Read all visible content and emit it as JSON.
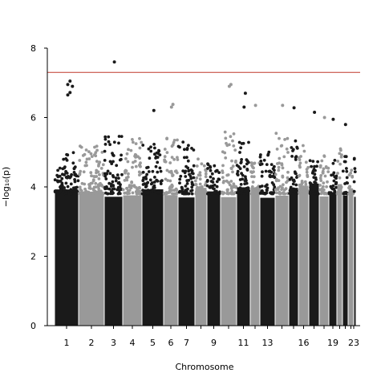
{
  "chart_data": {
    "type": "scatter",
    "subtype": "manhattan",
    "title": "",
    "xlabel": "Chromosome",
    "ylabel": "−log₁₀(p)",
    "ylim": [
      0,
      8
    ],
    "y_ticks": [
      0,
      2,
      4,
      6,
      8
    ],
    "x_tick_labels": [
      "1",
      "2",
      "3",
      "4",
      "5",
      "6",
      "7",
      "9",
      "11",
      "13",
      "16",
      "19",
      "23"
    ],
    "chromosome_count": 23,
    "significance_threshold": 7.3,
    "colors": {
      "odd_chromosomes": "#1a1a1a",
      "even_chromosomes": "#999999",
      "threshold_line": "#c0392b"
    },
    "grid": false,
    "legend": "none",
    "notable_points": [
      {
        "chromosome": 1,
        "values": [
          6.65,
          6.72,
          6.9,
          6.95,
          7.05
        ]
      },
      {
        "chromosome": 3,
        "values": [
          7.6
        ]
      },
      {
        "chromosome": 5,
        "values": [
          6.2
        ]
      },
      {
        "chromosome": 6,
        "values": [
          6.3,
          6.38
        ]
      },
      {
        "chromosome": 10,
        "values": [
          6.9,
          6.95
        ]
      },
      {
        "chromosome": 11,
        "values": [
          6.3,
          6.7
        ]
      },
      {
        "chromosome": 12,
        "values": [
          6.35
        ]
      },
      {
        "chromosome": 14,
        "values": [
          6.35
        ]
      },
      {
        "chromosome": 15,
        "values": [
          6.28
        ]
      },
      {
        "chromosome": 17,
        "values": [
          6.15
        ]
      },
      {
        "chromosome": 18,
        "values": [
          6.0
        ]
      },
      {
        "chromosome": 19,
        "values": [
          5.95
        ]
      },
      {
        "chromosome": 21,
        "values": [
          5.8
        ]
      }
    ]
  }
}
